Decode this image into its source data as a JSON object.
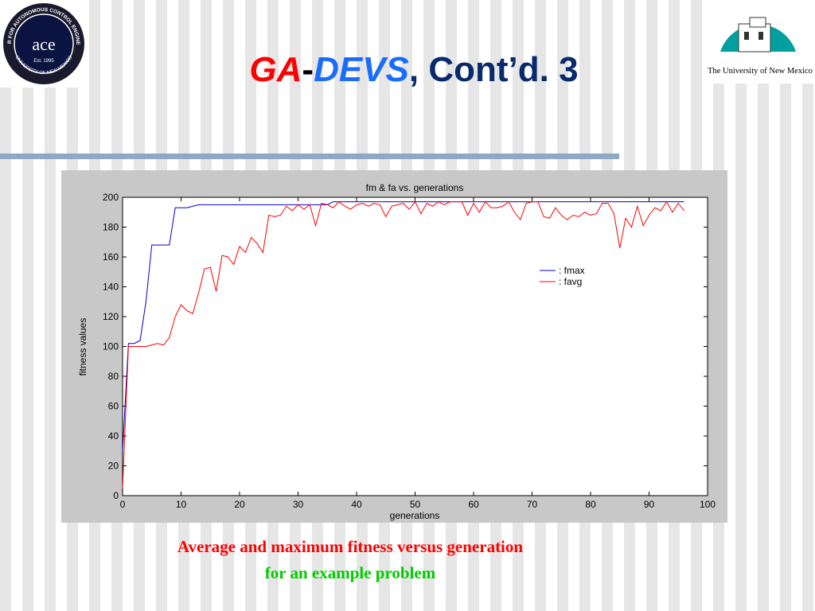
{
  "header": {
    "title_parts": [
      "GA",
      "-",
      "DEVS",
      ", Cont’d. 3"
    ],
    "left_logo": {
      "ring_top": "CENTER FOR AUTONOMOUS CONTROL ENGINEERING",
      "name": "ace",
      "established": "Est. 1995",
      "ring_bottom": "UNIVERSITY OF NEW MEXICO"
    },
    "right_logo": {
      "caption": "The University of New Mexico"
    }
  },
  "chart_data": {
    "type": "line",
    "title": "fm & fa vs. generations",
    "x_label": "generations",
    "y_label": "fitness values",
    "x": [
      0,
      1,
      2,
      3,
      4,
      5,
      6,
      7,
      8,
      9,
      10,
      11,
      12,
      13,
      14,
      15,
      16,
      17,
      18,
      19,
      20,
      21,
      22,
      23,
      24,
      25,
      26,
      27,
      28,
      29,
      30,
      31,
      32,
      33,
      34,
      35,
      36,
      37,
      38,
      39,
      40,
      41,
      42,
      43,
      44,
      45,
      46,
      47,
      48,
      49,
      50,
      51,
      52,
      53,
      54,
      55,
      56,
      57,
      58,
      59,
      60,
      61,
      62,
      63,
      64,
      65,
      66,
      67,
      68,
      69,
      70,
      71,
      72,
      73,
      74,
      75,
      76,
      77,
      78,
      79,
      80,
      81,
      82,
      83,
      84,
      85,
      86,
      87,
      88,
      89,
      90,
      91,
      92,
      93,
      94,
      95,
      96
    ],
    "series": [
      {
        "name": ": fmax",
        "color": "#0000cc",
        "values": [
          30,
          102,
          102,
          104,
          130,
          168,
          168,
          168,
          168,
          193,
          193,
          193,
          194,
          195,
          195,
          195,
          195,
          195,
          195,
          195,
          195,
          195,
          195,
          195,
          195,
          195,
          195,
          195,
          195,
          195,
          195,
          195,
          195,
          195,
          195,
          195,
          197,
          197,
          197,
          197,
          197,
          197,
          197,
          197,
          197,
          197,
          197,
          197,
          197,
          197,
          197,
          197,
          197,
          197,
          197,
          197,
          197,
          197,
          197,
          197,
          197,
          197,
          197,
          197,
          197,
          197,
          197,
          197,
          197,
          197,
          197,
          197,
          197,
          197,
          197,
          197,
          197,
          197,
          197,
          197,
          197,
          197,
          197,
          197,
          197,
          197,
          197,
          197,
          197,
          197,
          197,
          197,
          197,
          197,
          197,
          197,
          197
        ]
      },
      {
        "name": ": favg",
        "color": "#ff0000",
        "values": [
          5,
          100,
          100,
          100,
          100,
          101,
          102,
          101,
          106,
          120,
          128,
          124,
          122,
          136,
          152,
          153,
          137,
          161,
          160,
          155,
          167,
          163,
          173,
          169,
          163,
          188,
          187,
          188,
          194,
          191,
          195,
          192,
          195,
          181,
          196,
          195,
          193,
          197,
          194,
          192,
          195,
          196,
          194,
          196,
          195,
          187,
          194,
          195,
          196,
          192,
          197,
          189,
          196,
          194,
          197,
          195,
          197,
          197,
          197,
          188,
          196,
          190,
          197,
          193,
          193,
          194,
          197,
          190,
          185,
          196,
          197,
          197,
          187,
          186,
          193,
          188,
          185,
          188,
          187,
          190,
          188,
          189,
          196,
          196,
          189,
          166,
          186,
          180,
          194,
          181,
          188,
          193,
          191,
          197,
          190,
          196,
          191
        ]
      }
    ],
    "xlim": [
      0,
      100
    ],
    "xticks": [
      0,
      10,
      20,
      30,
      40,
      50,
      60,
      70,
      80,
      90,
      100
    ],
    "ylim": [
      0,
      200
    ],
    "yticks": [
      0,
      20,
      40,
      60,
      80,
      100,
      120,
      140,
      160,
      180,
      200
    ],
    "legend": "upper right"
  },
  "caption": {
    "line1": "Average and maximum fitness versus generation",
    "line2": "for an example problem"
  }
}
